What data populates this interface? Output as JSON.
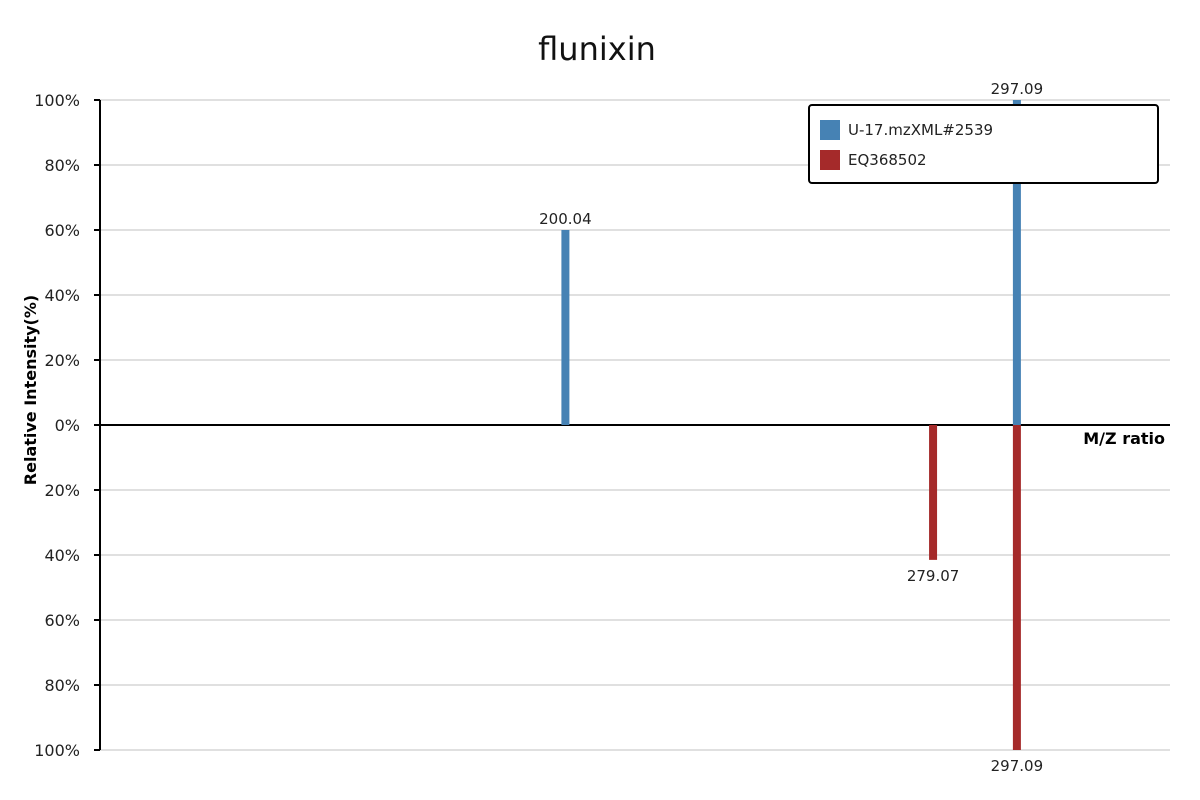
{
  "chart_data": {
    "type": "bar",
    "title": "flunixin",
    "xlabel": "M/Z ratio",
    "ylabel": "Relative Intensity(%)",
    "ylim": [
      -100,
      100
    ],
    "xlim": [
      100,
      330
    ],
    "yticks": [
      {
        "value": 100,
        "label": "100%"
      },
      {
        "value": 80,
        "label": "80%"
      },
      {
        "value": 60,
        "label": "60%"
      },
      {
        "value": 40,
        "label": "40%"
      },
      {
        "value": 20,
        "label": "20%"
      },
      {
        "value": 0,
        "label": "0%"
      },
      {
        "value": -20,
        "label": "20%"
      },
      {
        "value": -40,
        "label": "40%"
      },
      {
        "value": -60,
        "label": "60%"
      },
      {
        "value": -80,
        "label": "80%"
      },
      {
        "value": -100,
        "label": "100%"
      }
    ],
    "grid": true,
    "legend_position": "top-right",
    "series": [
      {
        "name": "U-17.mzXML#2539",
        "color": "#4682b4",
        "direction": "up",
        "peaks": [
          {
            "mz": 200.04,
            "intensity": 60,
            "label": "200.04"
          },
          {
            "mz": 297.09,
            "intensity": 100,
            "label": "297.09"
          }
        ]
      },
      {
        "name": "EQ368502",
        "color": "#a52a2a",
        "direction": "down",
        "peaks": [
          {
            "mz": 279.07,
            "intensity": 41.5,
            "label": "279.07"
          },
          {
            "mz": 297.09,
            "intensity": 100,
            "label": "297.09"
          }
        ]
      }
    ]
  }
}
